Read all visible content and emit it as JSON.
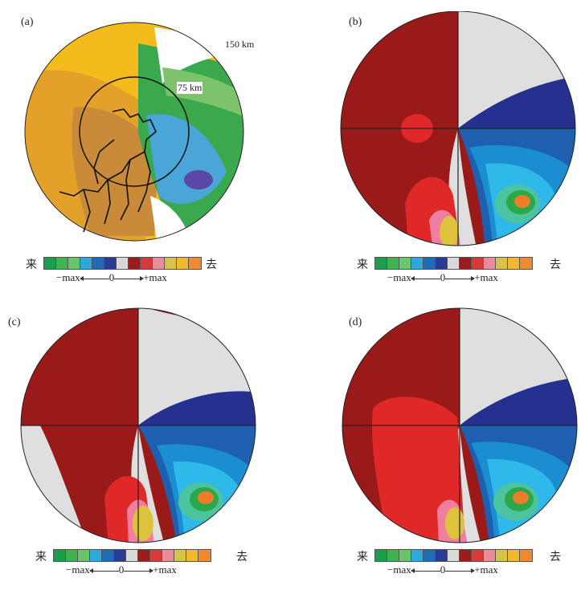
{
  "panels": [
    {
      "id": "a",
      "label": "(a)",
      "ring_outer_label": "150  km",
      "ring_inner_label": "75  km"
    },
    {
      "id": "b",
      "label": "(b)"
    },
    {
      "id": "c",
      "label": "(c)"
    },
    {
      "id": "d",
      "label": "(d)"
    }
  ],
  "legend": {
    "left_label": "来",
    "right_label": "去",
    "scale_neg": "−max",
    "scale_zero": "0",
    "scale_pos": "+max",
    "colors": [
      "#1a9e4e",
      "#3fb34f",
      "#69c56a",
      "#2fa8e0",
      "#1f6bb5",
      "#2a3b96",
      "#d9d9d9",
      "#9e1b1b",
      "#d83a3a",
      "#ec8a99",
      "#d8c24a",
      "#f2b830",
      "#ef8a30"
    ]
  },
  "colors": {
    "dark_red": "#9a1a1a",
    "red": "#e02828",
    "pink": "#ef7ea0",
    "yellow": "#ddc23c",
    "orange": "#f07d2a",
    "light_gray": "#dfdfdf",
    "navy": "#25308f",
    "blue": "#1f5fb0",
    "teal_blue": "#1a8ed0",
    "cyan": "#2fb8ea",
    "sea_green": "#4cc4a0",
    "green": "#2aa84a",
    "lime": "#8bc34a",
    "amber": "#f4bb1c",
    "brown_orange": "#d08d2a"
  }
}
